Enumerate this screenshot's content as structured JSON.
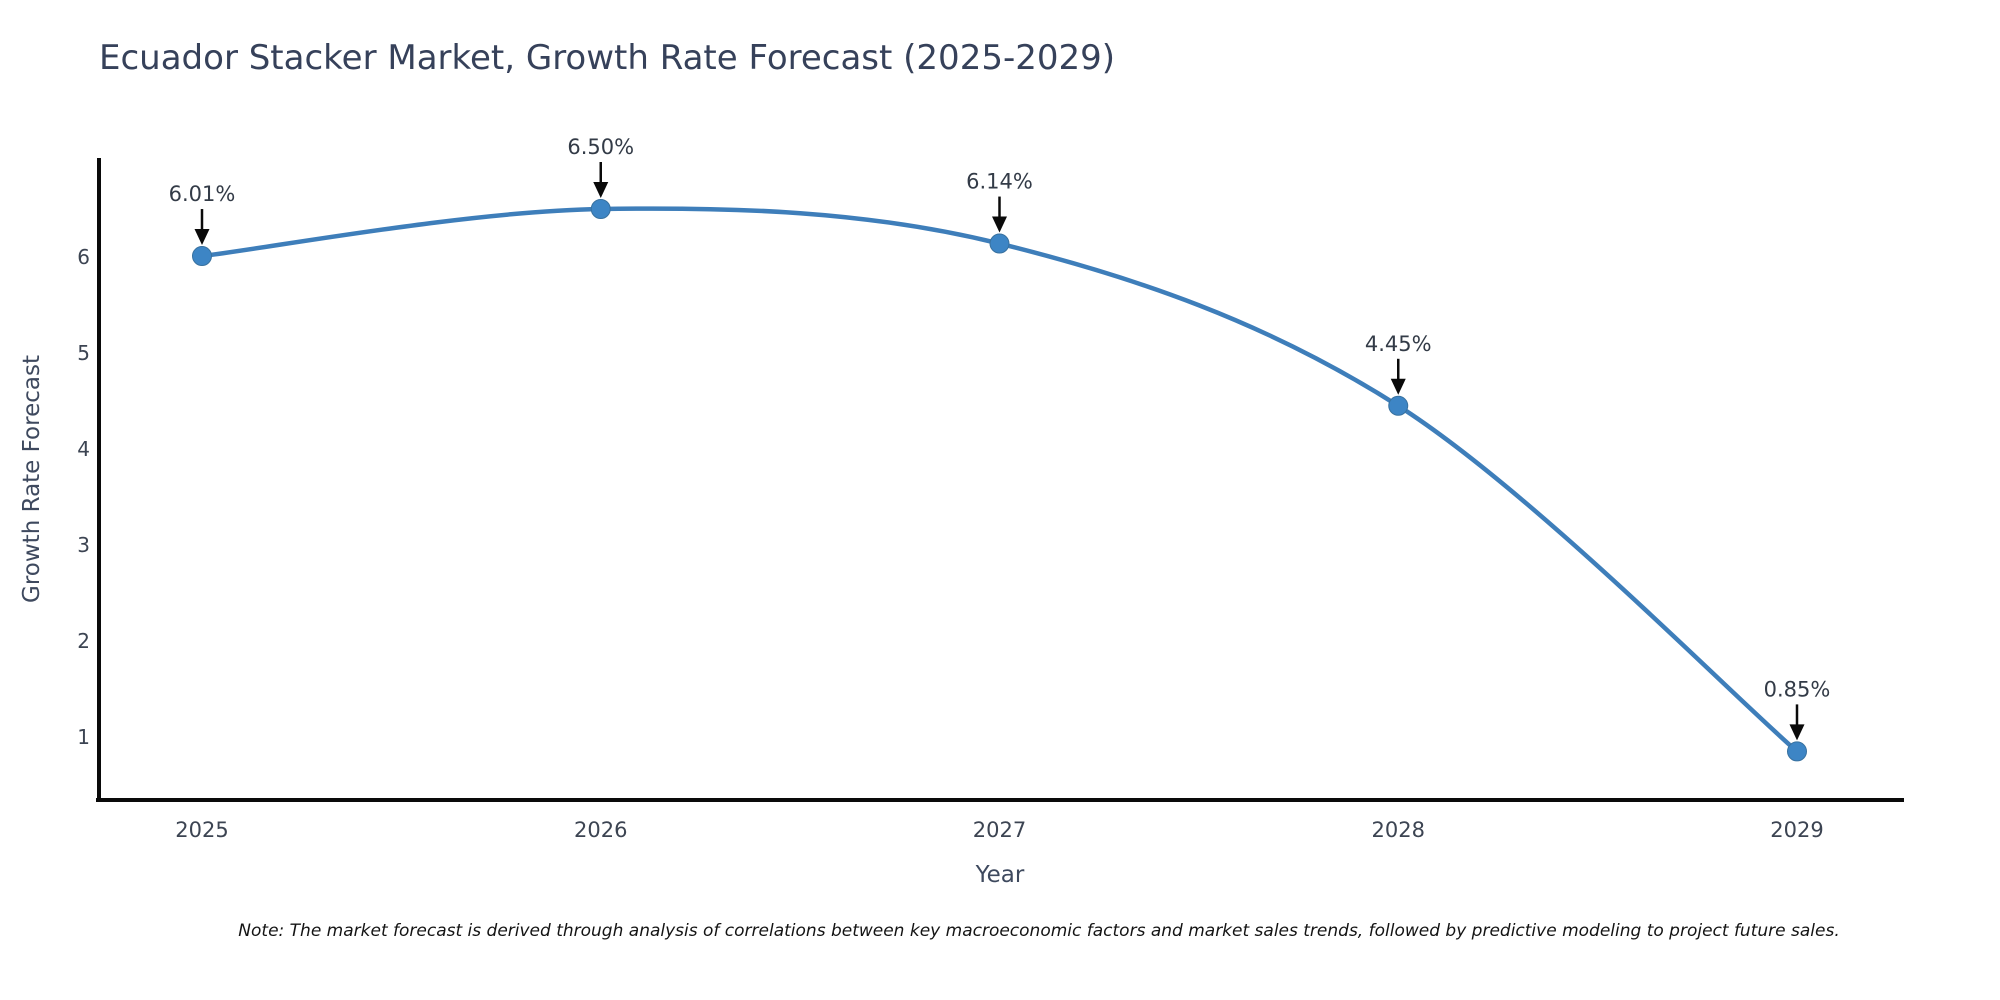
{
  "page": {
    "note": "Note: The market forecast is derived through analysis of correlations between key macroeconomic factors and market sales trends, followed by predictive modeling to project future sales."
  },
  "chart_data": {
    "type": "line",
    "title": "Ecuador Stacker Market, Growth Rate Forecast (2025-2029)",
    "x": [
      "2025",
      "2026",
      "2027",
      "2028",
      "2029"
    ],
    "series": [
      {
        "name": "Growth Rate Forecast",
        "values": [
          6.01,
          6.5,
          6.14,
          4.45,
          0.85
        ]
      }
    ],
    "point_labels": [
      "6.01%",
      "6.50%",
      "6.14%",
      "4.45%",
      "0.85%"
    ],
    "xlabel": "Year",
    "ylabel": "Growth Rate Forecast",
    "yticks": [
      1,
      2,
      3,
      4,
      5,
      6
    ],
    "ylim": [
      0.34,
      7.05
    ],
    "grid": false,
    "legend_position": "none",
    "line_shape": "spline",
    "marker": "circle",
    "annotation_style": "black-arrow-down-to-point",
    "colors": {
      "line": "#3e7eba",
      "marker_fill": "#3d85c5",
      "marker_edge": "#38719f",
      "spine": "#0a0a0a",
      "tick_label": "#3c4452",
      "point_label": "#333b47",
      "arrow": "#0a0a0a",
      "title_text": "#36415a",
      "axis_title_text": "#3e495e"
    }
  }
}
